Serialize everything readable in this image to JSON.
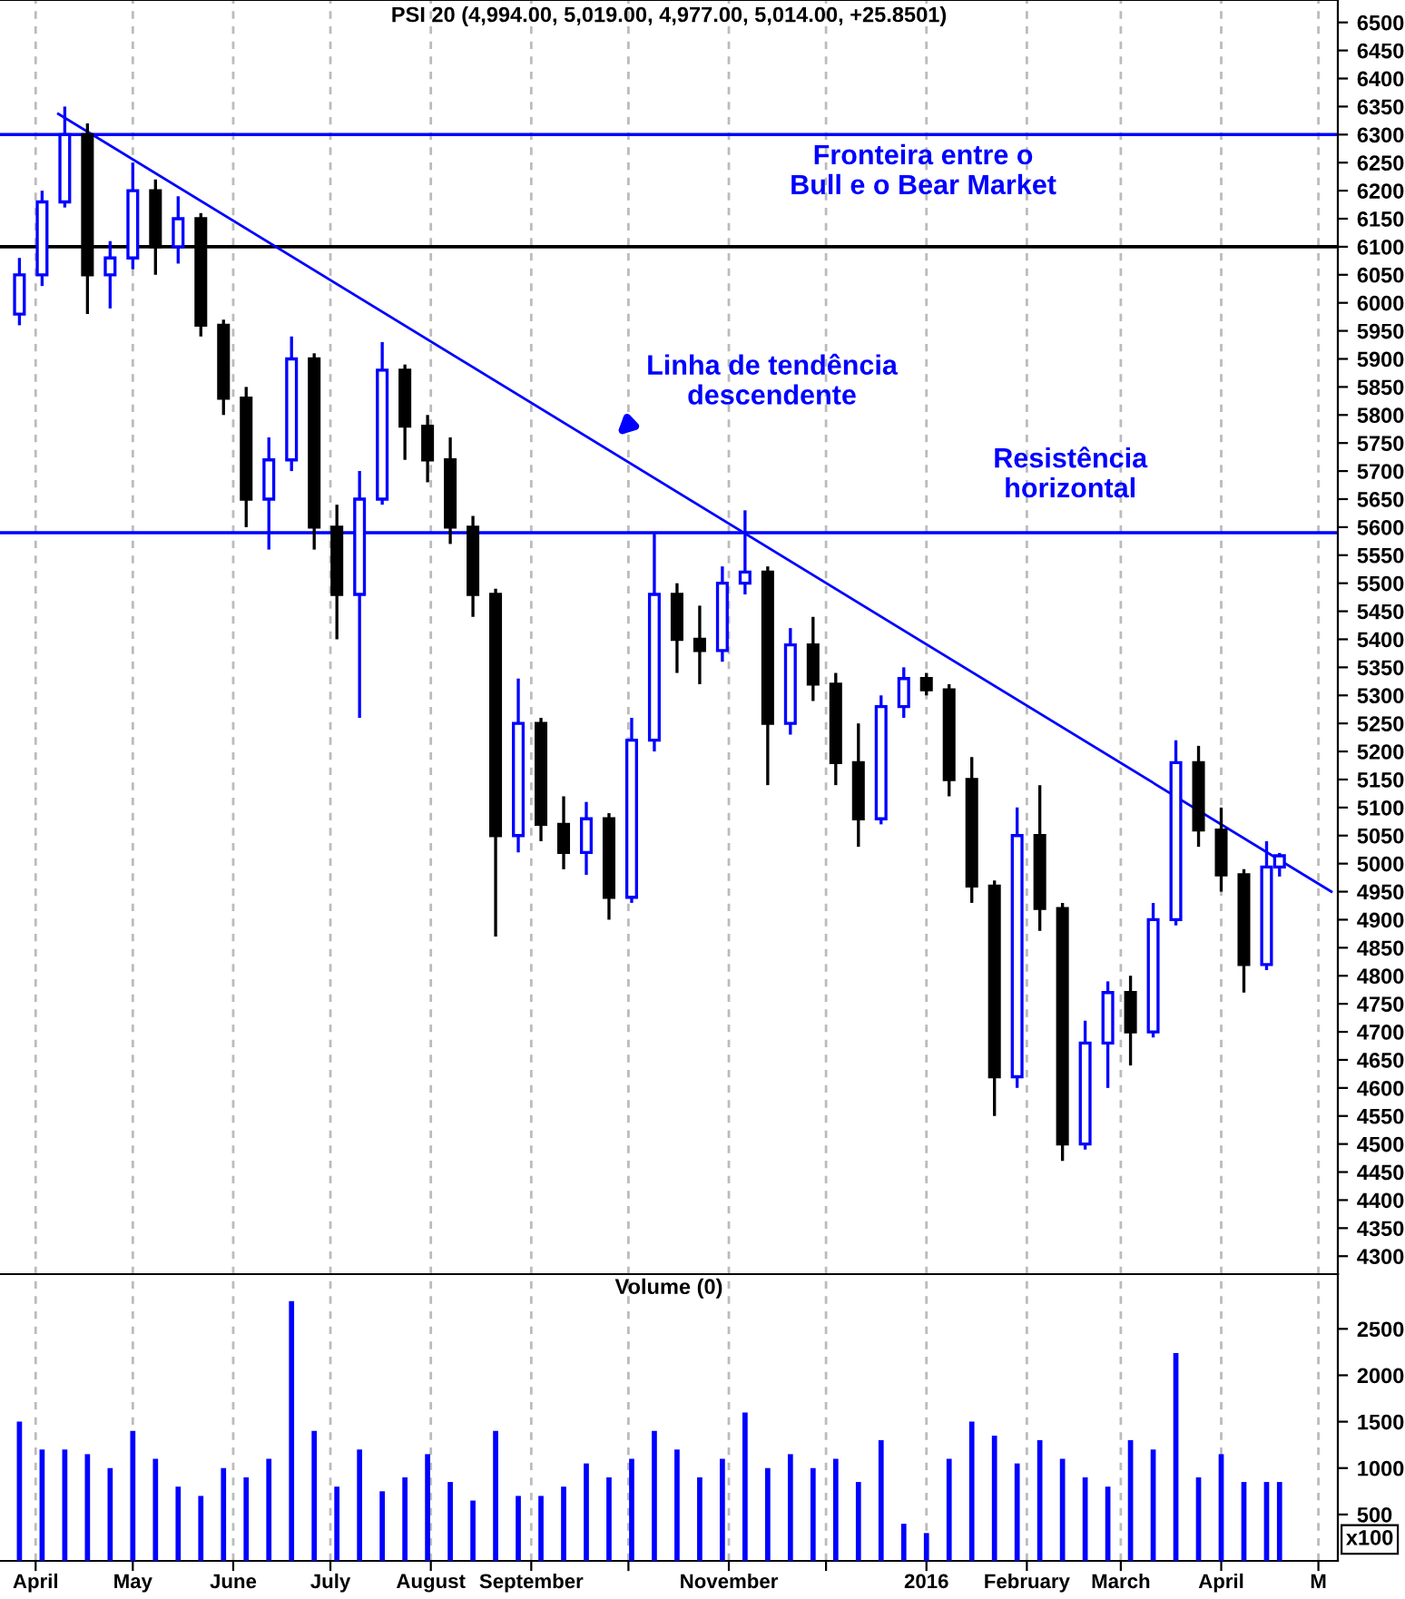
{
  "chart_data": [
    {
      "type": "candlestick",
      "title": "PSI 20 (4,994.00, 5,019.00, 4,977.00, 5,014.00, +25.8501)",
      "x": [
        "2015-03-27",
        "2015-04-03",
        "2015-04-10",
        "2015-04-17",
        "2015-04-24",
        "2015-05-01",
        "2015-05-08",
        "2015-05-15",
        "2015-05-22",
        "2015-05-29",
        "2015-06-05",
        "2015-06-12",
        "2015-06-19",
        "2015-06-26",
        "2015-07-03",
        "2015-07-10",
        "2015-07-17",
        "2015-07-24",
        "2015-07-31",
        "2015-08-07",
        "2015-08-14",
        "2015-08-21",
        "2015-08-28",
        "2015-09-04",
        "2015-09-11",
        "2015-09-18",
        "2015-09-25",
        "2015-10-02",
        "2015-10-09",
        "2015-10-16",
        "2015-10-23",
        "2015-10-30",
        "2015-11-06",
        "2015-11-13",
        "2015-11-20",
        "2015-11-27",
        "2015-12-04",
        "2015-12-11",
        "2015-12-18",
        "2015-12-25",
        "2016-01-01",
        "2016-01-08",
        "2016-01-15",
        "2016-01-22",
        "2016-01-29",
        "2016-02-05",
        "2016-02-12",
        "2016-02-19",
        "2016-02-26",
        "2016-03-04",
        "2016-03-11",
        "2016-03-18",
        "2016-03-25",
        "2016-04-01",
        "2016-04-08",
        "2016-04-15",
        "2016-04-19"
      ],
      "ohlc": [
        [
          5980,
          6080,
          5960,
          6050
        ],
        [
          6050,
          6200,
          6030,
          6180
        ],
        [
          6180,
          6350,
          6170,
          6300
        ],
        [
          6300,
          6320,
          5980,
          6050
        ],
        [
          6050,
          6110,
          5990,
          6080
        ],
        [
          6080,
          6250,
          6060,
          6200
        ],
        [
          6200,
          6220,
          6050,
          6100
        ],
        [
          6100,
          6190,
          6070,
          6150
        ],
        [
          6150,
          6160,
          5940,
          5960
        ],
        [
          5960,
          5970,
          5800,
          5830
        ],
        [
          5830,
          5850,
          5600,
          5650
        ],
        [
          5650,
          5760,
          5560,
          5720
        ],
        [
          5720,
          5940,
          5700,
          5900
        ],
        [
          5900,
          5910,
          5560,
          5600
        ],
        [
          5600,
          5640,
          5400,
          5480
        ],
        [
          5480,
          5700,
          5260,
          5650
        ],
        [
          5650,
          5930,
          5640,
          5880
        ],
        [
          5880,
          5890,
          5720,
          5780
        ],
        [
          5780,
          5800,
          5680,
          5720
        ],
        [
          5720,
          5760,
          5570,
          5600
        ],
        [
          5600,
          5620,
          5440,
          5480
        ],
        [
          5480,
          5490,
          4870,
          5050
        ],
        [
          5050,
          5330,
          5020,
          5250
        ],
        [
          5250,
          5260,
          5040,
          5070
        ],
        [
          5070,
          5120,
          4990,
          5020
        ],
        [
          5020,
          5110,
          4980,
          5080
        ],
        [
          5080,
          5090,
          4900,
          4940
        ],
        [
          4940,
          5260,
          4930,
          5220
        ],
        [
          5220,
          5590,
          5200,
          5480
        ],
        [
          5480,
          5500,
          5340,
          5400
        ],
        [
          5400,
          5460,
          5320,
          5380
        ],
        [
          5380,
          5530,
          5360,
          5500
        ],
        [
          5500,
          5630,
          5480,
          5520
        ],
        [
          5520,
          5530,
          5140,
          5250
        ],
        [
          5250,
          5420,
          5230,
          5390
        ],
        [
          5390,
          5440,
          5290,
          5320
        ],
        [
          5320,
          5340,
          5140,
          5180
        ],
        [
          5180,
          5250,
          5030,
          5080
        ],
        [
          5080,
          5300,
          5070,
          5280
        ],
        [
          5280,
          5350,
          5260,
          5330
        ],
        [
          5330,
          5340,
          5300,
          5310
        ],
        [
          5310,
          5320,
          5120,
          5150
        ],
        [
          5150,
          5190,
          4930,
          4960
        ],
        [
          4960,
          4970,
          4550,
          4620
        ],
        [
          4620,
          5100,
          4600,
          5050
        ],
        [
          5050,
          5140,
          4880,
          4920
        ],
        [
          4920,
          4930,
          4470,
          4500
        ],
        [
          4500,
          4720,
          4490,
          4680
        ],
        [
          4680,
          4790,
          4600,
          4770
        ],
        [
          4770,
          4800,
          4640,
          4700
        ],
        [
          4700,
          4930,
          4690,
          4900
        ],
        [
          4900,
          5220,
          4890,
          5180
        ],
        [
          5180,
          5210,
          5030,
          5060
        ],
        [
          5060,
          5100,
          4950,
          4980
        ],
        [
          4980,
          4990,
          4770,
          4820
        ],
        [
          4820,
          5040,
          4810,
          4994
        ],
        [
          4994,
          5019,
          4977,
          5014
        ]
      ],
      "colors": [
        "#0000ff",
        "#0000ff",
        "#0000ff",
        "#000000",
        "#0000ff",
        "#0000ff",
        "#000000",
        "#0000ff",
        "#000000",
        "#000000",
        "#000000",
        "#0000ff",
        "#0000ff",
        "#000000",
        "#000000",
        "#0000ff",
        "#0000ff",
        "#000000",
        "#000000",
        "#000000",
        "#000000",
        "#000000",
        "#0000ff",
        "#000000",
        "#000000",
        "#0000ff",
        "#000000",
        "#0000ff",
        "#0000ff",
        "#000000",
        "#000000",
        "#0000ff",
        "#0000ff",
        "#000000",
        "#0000ff",
        "#000000",
        "#000000",
        "#000000",
        "#0000ff",
        "#0000ff",
        "#000000",
        "#000000",
        "#000000",
        "#000000",
        "#0000ff",
        "#000000",
        "#000000",
        "#0000ff",
        "#0000ff",
        "#000000",
        "#0000ff",
        "#0000ff",
        "#000000",
        "#000000",
        "#000000",
        "#0000ff",
        "#0000ff"
      ],
      "series": [
        {
          "type": "line",
          "color": "#0000ff",
          "x": [
            "2015-04-08",
            "2016-05-05"
          ],
          "values": [
            6337,
            4950
          ]
        }
      ],
      "ref_lines": [
        {
          "axis": "y",
          "value": 6300,
          "color": "#0000ff"
        },
        {
          "axis": "y",
          "value": 6100,
          "color": "#000000"
        },
        {
          "axis": "y",
          "value": 5590,
          "color": "#0000ff"
        }
      ],
      "annotations": [
        "Fronteira entre o\nBull e o Bear Market",
        "Linha de tendência\ndescendente",
        "Resistência\nhorizontal"
      ],
      "xlim": [
        "2015-03-21",
        "2016-05-07"
      ],
      "xticks": [
        {
          "value": "2015-04-01",
          "label": null
        },
        {
          "value": "2015-05-01",
          "label": null
        },
        {
          "value": "2015-06-01",
          "label": null
        },
        {
          "value": "2015-07-01",
          "label": null
        },
        {
          "value": "2015-08-01",
          "label": null
        },
        {
          "value": "2015-09-01",
          "label": null
        },
        {
          "value": "2015-10-01",
          "label": null
        },
        {
          "value": "2015-11-01",
          "label": null
        },
        {
          "value": "2015-12-01",
          "label": null
        },
        {
          "value": "2016-01-01",
          "label": null
        },
        {
          "value": "2016-02-01",
          "label": null
        },
        {
          "value": "2016-03-01",
          "label": null
        },
        {
          "value": "2016-04-01",
          "label": null
        },
        {
          "value": "2016-05-01",
          "label": null
        }
      ],
      "ylim": [
        4268,
        6540
      ],
      "yticks": [
        4300,
        4350,
        4400,
        4450,
        4500,
        4550,
        4600,
        4650,
        4700,
        4750,
        4800,
        4850,
        4900,
        4950,
        5000,
        5050,
        5100,
        5150,
        5200,
        5250,
        5300,
        5350,
        5400,
        5450,
        5500,
        5550,
        5600,
        5650,
        5700,
        5750,
        5800,
        5850,
        5900,
        5950,
        6000,
        6050,
        6100,
        6150,
        6200,
        6250,
        6300,
        6350,
        6400,
        6450,
        6500
      ],
      "grid": "x",
      "tick_labels": "y"
    },
    {
      "type": "bar",
      "title": "Volume (0)",
      "color": "#0000ff",
      "x": [
        "2015-03-27",
        "2015-04-03",
        "2015-04-10",
        "2015-04-17",
        "2015-04-24",
        "2015-05-01",
        "2015-05-08",
        "2015-05-15",
        "2015-05-22",
        "2015-05-29",
        "2015-06-05",
        "2015-06-12",
        "2015-06-19",
        "2015-06-26",
        "2015-07-03",
        "2015-07-10",
        "2015-07-17",
        "2015-07-24",
        "2015-07-31",
        "2015-08-07",
        "2015-08-14",
        "2015-08-21",
        "2015-08-28",
        "2015-09-04",
        "2015-09-11",
        "2015-09-18",
        "2015-09-25",
        "2015-10-02",
        "2015-10-09",
        "2015-10-16",
        "2015-10-23",
        "2015-10-30",
        "2015-11-06",
        "2015-11-13",
        "2015-11-20",
        "2015-11-27",
        "2015-12-04",
        "2015-12-11",
        "2015-12-18",
        "2015-12-25",
        "2016-01-01",
        "2016-01-08",
        "2016-01-15",
        "2016-01-22",
        "2016-01-29",
        "2016-02-05",
        "2016-02-12",
        "2016-02-19",
        "2016-02-26",
        "2016-03-04",
        "2016-03-11",
        "2016-03-18",
        "2016-03-25",
        "2016-04-01",
        "2016-04-08",
        "2016-04-15",
        "2016-04-19"
      ],
      "values": [
        1500,
        1200,
        1200,
        1150,
        1000,
        1400,
        1100,
        800,
        700,
        1000,
        900,
        1100,
        2800,
        1400,
        800,
        1200,
        750,
        900,
        1150,
        850,
        650,
        1400,
        700,
        700,
        800,
        1050,
        900,
        1100,
        1400,
        1200,
        900,
        1100,
        1600,
        1000,
        1150,
        1000,
        1100,
        850,
        1300,
        400,
        300,
        1100,
        1500,
        1350,
        1050,
        1300,
        1100,
        900,
        800,
        1300,
        1200,
        2240,
        900,
        1150,
        850,
        850,
        850
      ],
      "annotations": [
        "x100"
      ],
      "xlim": [
        "2015-03-21",
        "2016-05-07"
      ],
      "xticks": [
        {
          "value": "2015-04-01",
          "label": "April"
        },
        {
          "value": "2015-05-01",
          "label": "May"
        },
        {
          "value": "2015-06-01",
          "label": "June"
        },
        {
          "value": "2015-07-01",
          "label": "July"
        },
        {
          "value": "2015-08-01",
          "label": "August"
        },
        {
          "value": "2015-09-01",
          "label": "September"
        },
        {
          "value": "2015-10-01",
          "label": null
        },
        {
          "value": "2015-11-01",
          "label": "November"
        },
        {
          "value": "2015-12-01",
          "label": null
        },
        {
          "value": "2016-01-01",
          "label": "2016"
        },
        {
          "value": "2016-02-01",
          "label": "February"
        },
        {
          "value": "2016-03-01",
          "label": "March"
        },
        {
          "value": "2016-04-01",
          "label": "April"
        },
        {
          "value": "2016-05-01",
          "label": "M"
        }
      ],
      "ylim": [
        0,
        3090
      ],
      "yticks": [
        500,
        1000,
        1500,
        2000,
        2500
      ],
      "grid": "x"
    }
  ]
}
